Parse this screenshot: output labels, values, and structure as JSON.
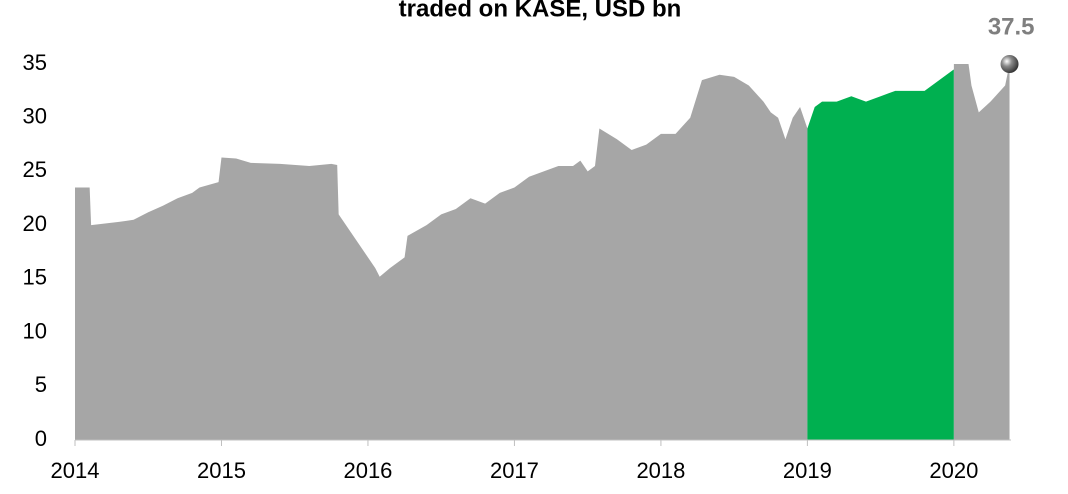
{
  "chart_data": {
    "type": "area",
    "title": "traded on KASE, USD bn",
    "annotation": "37.5",
    "xlim": [
      2014,
      2020.39
    ],
    "xticks": [
      2014,
      2015,
      2016,
      2017,
      2018,
      2019,
      2020
    ],
    "ylim": [
      0,
      35
    ],
    "yticks": [
      0,
      5,
      10,
      15,
      20,
      25,
      30,
      35
    ],
    "grid": false,
    "series": [
      {
        "color": "#a6a6a6",
        "x": [
          2014.0,
          2014.1,
          2014.11,
          2014.3,
          2014.4,
          2014.5,
          2014.6,
          2014.7,
          2014.8,
          2014.85,
          2014.98,
          2015.0,
          2015.1,
          2015.2,
          2015.4,
          2015.6,
          2015.75,
          2015.79,
          2015.8,
          2015.9,
          2016.0,
          2016.05,
          2016.08,
          2016.15,
          2016.25,
          2016.27,
          2016.4,
          2016.5,
          2016.6,
          2016.7,
          2016.8,
          2016.9,
          2017.0,
          2017.1,
          2017.2,
          2017.3,
          2017.4,
          2017.45,
          2017.5,
          2017.55,
          2017.58,
          2017.7,
          2017.8,
          2017.9,
          2018.0,
          2018.1,
          2018.2,
          2018.28,
          2018.4,
          2018.5,
          2018.6,
          2018.7,
          2018.75,
          2018.8,
          2018.85,
          2018.9,
          2018.95,
          2019.0
        ],
        "values": [
          23.5,
          23.5,
          20,
          20.3,
          20.5,
          21.2,
          21.8,
          22.5,
          23,
          23.5,
          24,
          26.3,
          26.2,
          25.8,
          25.7,
          25.5,
          25.7,
          25.6,
          21,
          19,
          17,
          16,
          15.2,
          16,
          17,
          19,
          20,
          21,
          21.5,
          22.5,
          22,
          23,
          23.5,
          24.5,
          25,
          25.5,
          25.5,
          26,
          25,
          25.5,
          29,
          28,
          27,
          27.5,
          28.5,
          28.5,
          30,
          33.5,
          34,
          33.8,
          33,
          31.5,
          30.5,
          30,
          28,
          30,
          31,
          29
        ]
      },
      {
        "color": "#00b050",
        "x": [
          2019.0,
          2019.05,
          2019.1,
          2019.2,
          2019.3,
          2019.4,
          2019.5,
          2019.6,
          2019.7,
          2019.8,
          2019.9,
          2020.0
        ],
        "values": [
          29,
          31,
          31.5,
          31.5,
          32,
          31.5,
          32,
          32.5,
          32.5,
          32.5,
          33.5,
          34.5
        ]
      },
      {
        "color": "#a6a6a6",
        "x": [
          2020.0,
          2020.1,
          2020.12,
          2020.17,
          2020.25,
          2020.35,
          2020.38
        ],
        "values": [
          35,
          35,
          33,
          30.5,
          31.5,
          33,
          35
        ]
      }
    ]
  }
}
